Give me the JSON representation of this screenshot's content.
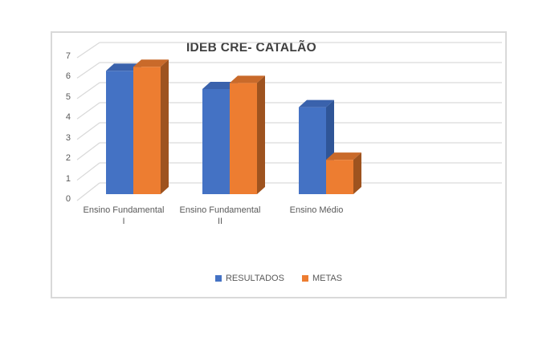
{
  "chart": {
    "border_color": "#D9D9D9",
    "gridline_color": "#D9D9D9",
    "text_color": "#595959",
    "title_color": "#3F3F3F",
    "background": "#FFFFFF"
  },
  "chart_data": {
    "type": "bar",
    "subtype": "3d-clustered-column",
    "title": "IDEB CRE- CATALÃO",
    "categories": [
      "Ensino Fundamental I",
      "Ensino Fundamental II",
      "Ensino Médio"
    ],
    "series": [
      {
        "name": "RESULTADOS",
        "values": [
          6.1,
          5.2,
          4.3
        ],
        "color": "#4472C4",
        "color_top": "#3A62AC",
        "color_side": "#2F5597"
      },
      {
        "name": "METAS",
        "values": [
          6.3,
          5.5,
          1.7
        ],
        "color": "#ED7D31",
        "color_top": "#C96A2A",
        "color_side": "#9E531F"
      }
    ],
    "ylim": [
      0,
      7
    ],
    "yticks": [
      0,
      1,
      2,
      3,
      4,
      5,
      6,
      7
    ],
    "grid": true,
    "legend_position": "bottom"
  }
}
